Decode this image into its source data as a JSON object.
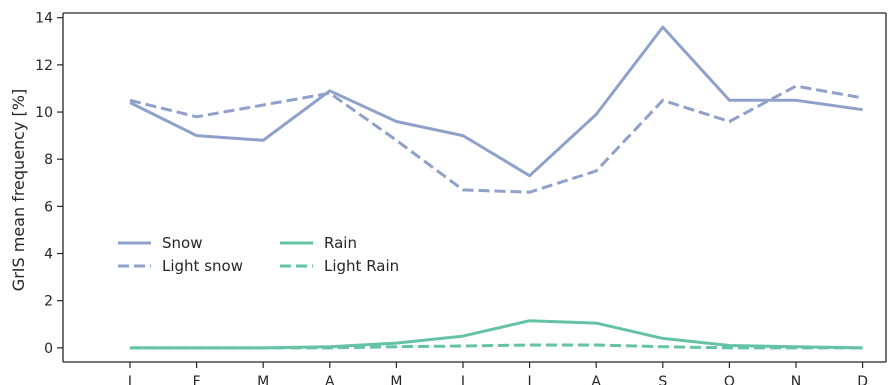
{
  "chart_data": {
    "type": "line",
    "categories": [
      "J",
      "F",
      "M",
      "A",
      "M",
      "J",
      "J",
      "A",
      "S",
      "O",
      "N",
      "D"
    ],
    "ylabel": "GrIS mean frequency [%]",
    "ylim": [
      -0.6,
      14.2
    ],
    "yticks": [
      0,
      2,
      4,
      6,
      8,
      10,
      12,
      14
    ],
    "grid": false,
    "legend_position": "center-left",
    "series": [
      {
        "name": "Snow",
        "color": "#8fa1ca",
        "dash": "solid",
        "values": [
          10.4,
          9.0,
          8.8,
          10.9,
          9.6,
          9.0,
          7.3,
          9.9,
          13.6,
          10.5,
          10.5,
          10.1
        ]
      },
      {
        "name": "Light snow",
        "color": "#8fa1ca",
        "dash": "dashed",
        "values": [
          10.5,
          9.8,
          10.3,
          10.8,
          8.8,
          6.7,
          6.6,
          7.5,
          10.5,
          9.6,
          11.1,
          10.6
        ]
      },
      {
        "name": "Rain",
        "color": "#66c2a5",
        "dash": "solid",
        "values": [
          0.0,
          0.0,
          0.0,
          0.05,
          0.2,
          0.5,
          1.15,
          1.05,
          0.4,
          0.1,
          0.05,
          0.0
        ]
      },
      {
        "name": "Light Rain",
        "color": "#66c2a5",
        "dash": "dashed",
        "values": [
          0.0,
          0.0,
          0.0,
          0.0,
          0.05,
          0.08,
          0.12,
          0.12,
          0.05,
          0.0,
          0.0,
          0.0
        ]
      }
    ]
  }
}
